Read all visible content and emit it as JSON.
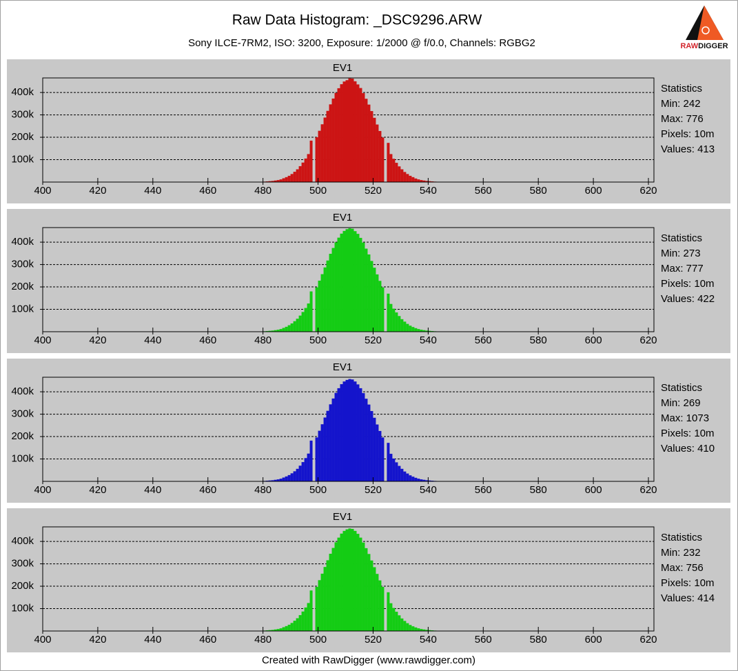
{
  "page": {
    "title": "Raw Data Histogram: _DSC9296.ARW",
    "subtitle": "Sony ILCE-7RM2, ISO: 3200, Exposure: 1/2000 @ f/0.0, Channels: RGBG2",
    "footer": "Created with RawDigger (www.rawdigger.com)",
    "logo": [
      "RAW",
      "DIGGER"
    ]
  },
  "chart_data": [
    {
      "type": "histogram",
      "title": "EV1",
      "color": "#cc1414",
      "grid": true,
      "stats": [
        "Statistics",
        "Min: 242",
        "Max: 776",
        "Pixels: 10m",
        "Values: 413"
      ],
      "bins": [
        478,
        479,
        480,
        481,
        482,
        483,
        484,
        485,
        486,
        487,
        488,
        489,
        490,
        491,
        492,
        493,
        494,
        495,
        496,
        497,
        498,
        499,
        500,
        501,
        502,
        503,
        504,
        505,
        506,
        507,
        508,
        509,
        510,
        511,
        512,
        513,
        514,
        515,
        516,
        517,
        518,
        519,
        520,
        521,
        522,
        523,
        524,
        525,
        526,
        527,
        528,
        529,
        530,
        531,
        532,
        533,
        534,
        535,
        536,
        537,
        538,
        539,
        540,
        541,
        542,
        543,
        544,
        545,
        546
      ],
      "values": [
        1000,
        1000,
        2000,
        3000,
        4000,
        5000,
        7000,
        9000,
        12000,
        17000,
        22000,
        28000,
        36000,
        46000,
        57000,
        71000,
        87000,
        105000,
        125000,
        185000,
        0,
        200000,
        229000,
        258000,
        288000,
        318000,
        347000,
        373000,
        398000,
        419000,
        437000,
        449000,
        455000,
        463000,
        462000,
        450000,
        436000,
        420000,
        397000,
        372000,
        346000,
        317000,
        287000,
        257000,
        228000,
        199000,
        0,
        175000,
        125000,
        104000,
        86000,
        70000,
        57000,
        45000,
        36000,
        28000,
        22000,
        16000,
        12000,
        9000,
        7000,
        5000,
        4000,
        3000,
        2000,
        1000,
        1000,
        500
      ],
      "xlim": [
        400,
        622
      ],
      "xticks": [
        400,
        420,
        440,
        460,
        480,
        500,
        520,
        540,
        560,
        580,
        600,
        620
      ],
      "ylim": [
        0,
        465000
      ],
      "yticks": [
        {
          "value": 100000,
          "label": "100k"
        },
        {
          "value": 200000,
          "label": "200k"
        },
        {
          "value": 300000,
          "label": "300k"
        },
        {
          "value": 400000,
          "label": "400k"
        }
      ]
    },
    {
      "type": "histogram",
      "title": "EV1",
      "color": "#14cc14",
      "grid": true,
      "stats": [
        "Statistics",
        "Min: 273",
        "Max: 777",
        "Pixels: 10m",
        "Values: 422"
      ],
      "bins": [
        478,
        479,
        480,
        481,
        482,
        483,
        484,
        485,
        486,
        487,
        488,
        489,
        490,
        491,
        492,
        493,
        494,
        495,
        496,
        497,
        498,
        499,
        500,
        501,
        502,
        503,
        504,
        505,
        506,
        507,
        508,
        509,
        510,
        511,
        512,
        513,
        514,
        515,
        516,
        517,
        518,
        519,
        520,
        521,
        522,
        523,
        524,
        525,
        526,
        527,
        528,
        529,
        530,
        531,
        532,
        533,
        534,
        535,
        536,
        537,
        538,
        539,
        540,
        541,
        542,
        543,
        544,
        545,
        546
      ],
      "values": [
        1000,
        1000,
        2000,
        3000,
        4000,
        5000,
        7000,
        9000,
        12000,
        17000,
        22000,
        29000,
        37000,
        47000,
        58000,
        72000,
        88000,
        106000,
        126000,
        180000,
        0,
        198000,
        228000,
        257000,
        287000,
        318000,
        348000,
        374000,
        399000,
        420000,
        438000,
        450000,
        458000,
        462000,
        460000,
        449000,
        437000,
        419000,
        398000,
        371000,
        345000,
        316000,
        286000,
        256000,
        227000,
        198000,
        0,
        170000,
        124000,
        103000,
        86000,
        70000,
        56000,
        45000,
        35000,
        27000,
        21000,
        16000,
        12000,
        9000,
        7000,
        5000,
        4000,
        3000,
        2000,
        1000,
        1000,
        500
      ],
      "xlim": [
        400,
        622
      ],
      "xticks": [
        400,
        420,
        440,
        460,
        480,
        500,
        520,
        540,
        560,
        580,
        600,
        620
      ],
      "ylim": [
        0,
        465000
      ],
      "yticks": [
        {
          "value": 100000,
          "label": "100k"
        },
        {
          "value": 200000,
          "label": "200k"
        },
        {
          "value": 300000,
          "label": "300k"
        },
        {
          "value": 400000,
          "label": "400k"
        }
      ]
    },
    {
      "type": "histogram",
      "title": "EV1",
      "color": "#1414cc",
      "grid": true,
      "stats": [
        "Statistics",
        "Min: 269",
        "Max: 1073",
        "Pixels: 10m",
        "Values: 410"
      ],
      "bins": [
        478,
        479,
        480,
        481,
        482,
        483,
        484,
        485,
        486,
        487,
        488,
        489,
        490,
        491,
        492,
        493,
        494,
        495,
        496,
        497,
        498,
        499,
        500,
        501,
        502,
        503,
        504,
        505,
        506,
        507,
        508,
        509,
        510,
        511,
        512,
        513,
        514,
        515,
        516,
        517,
        518,
        519,
        520,
        521,
        522,
        523,
        524,
        525,
        526,
        527,
        528,
        529,
        530,
        531,
        532,
        533,
        534,
        535,
        536,
        537,
        538,
        539,
        540,
        541,
        542,
        543,
        544,
        545,
        546
      ],
      "values": [
        1000,
        1000,
        2000,
        3000,
        4000,
        5000,
        7000,
        9000,
        12000,
        17000,
        22000,
        28000,
        36000,
        45000,
        56000,
        70000,
        86000,
        104000,
        124000,
        182000,
        0,
        196000,
        226000,
        255000,
        285000,
        315000,
        344000,
        370000,
        395000,
        416000,
        434000,
        446000,
        453000,
        457000,
        455000,
        446000,
        433000,
        416000,
        394000,
        369000,
        343000,
        314000,
        284000,
        254000,
        225000,
        196000,
        0,
        172000,
        123000,
        102000,
        85000,
        69000,
        56000,
        44000,
        35000,
        27000,
        21000,
        16000,
        12000,
        9000,
        7000,
        5000,
        4000,
        3000,
        2000,
        1000,
        1000,
        500
      ],
      "xlim": [
        400,
        622
      ],
      "xticks": [
        400,
        420,
        440,
        460,
        480,
        500,
        520,
        540,
        560,
        580,
        600,
        620
      ],
      "ylim": [
        0,
        465000
      ],
      "yticks": [
        {
          "value": 100000,
          "label": "100k"
        },
        {
          "value": 200000,
          "label": "200k"
        },
        {
          "value": 300000,
          "label": "300k"
        },
        {
          "value": 400000,
          "label": "400k"
        }
      ]
    },
    {
      "type": "histogram",
      "title": "EV1",
      "color": "#14cc14",
      "grid": true,
      "stats": [
        "Statistics",
        "Min: 232",
        "Max: 756",
        "Pixels: 10m",
        "Values: 414"
      ],
      "bins": [
        478,
        479,
        480,
        481,
        482,
        483,
        484,
        485,
        486,
        487,
        488,
        489,
        490,
        491,
        492,
        493,
        494,
        495,
        496,
        497,
        498,
        499,
        500,
        501,
        502,
        503,
        504,
        505,
        506,
        507,
        508,
        509,
        510,
        511,
        512,
        513,
        514,
        515,
        516,
        517,
        518,
        519,
        520,
        521,
        522,
        523,
        524,
        525,
        526,
        527,
        528,
        529,
        530,
        531,
        532,
        533,
        534,
        535,
        536,
        537,
        538,
        539,
        540,
        541,
        542,
        543,
        544,
        545,
        546
      ],
      "values": [
        1000,
        1000,
        2000,
        3000,
        4000,
        5000,
        7000,
        9000,
        12000,
        17000,
        22000,
        28000,
        36000,
        46000,
        57000,
        71000,
        87000,
        105000,
        125000,
        181000,
        0,
        197000,
        227000,
        256000,
        286000,
        316000,
        345000,
        371000,
        396000,
        417000,
        435000,
        447000,
        454000,
        458000,
        456000,
        447000,
        434000,
        417000,
        395000,
        370000,
        344000,
        315000,
        285000,
        255000,
        226000,
        197000,
        0,
        173000,
        124000,
        103000,
        86000,
        70000,
        56000,
        45000,
        35000,
        27000,
        21000,
        16000,
        12000,
        9000,
        7000,
        5000,
        4000,
        3000,
        2000,
        1000,
        1000,
        500
      ],
      "xlim": [
        400,
        622
      ],
      "xticks": [
        400,
        420,
        440,
        460,
        480,
        500,
        520,
        540,
        560,
        580,
        600,
        620
      ],
      "ylim": [
        0,
        465000
      ],
      "yticks": [
        {
          "value": 100000,
          "label": "100k"
        },
        {
          "value": 200000,
          "label": "200k"
        },
        {
          "value": 300000,
          "label": "300k"
        },
        {
          "value": 400000,
          "label": "400k"
        }
      ]
    }
  ]
}
